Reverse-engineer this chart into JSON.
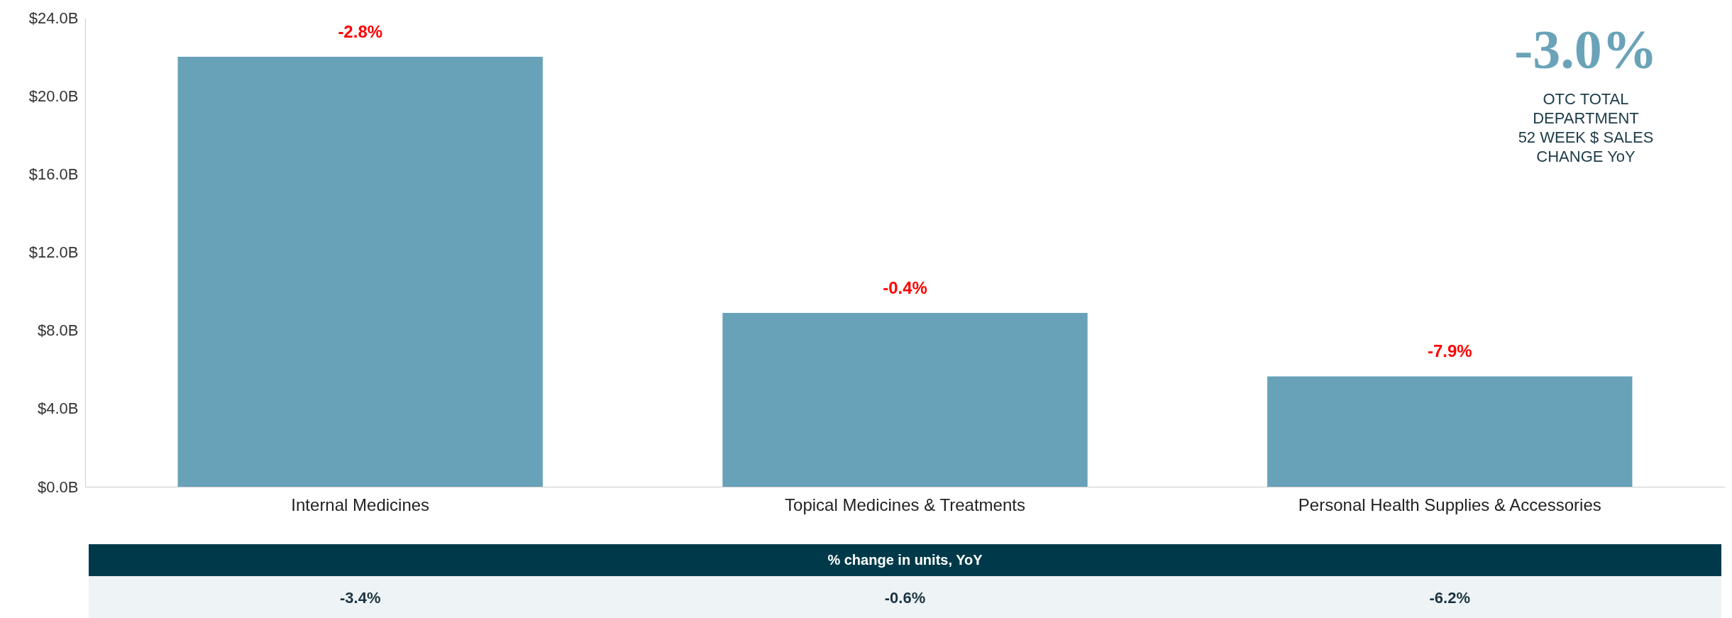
{
  "chart_data": {
    "type": "bar",
    "categories": [
      "Internal Medicines",
      "Topical Medicines & Treatments",
      "Personal Health Supplies & Accessories"
    ],
    "values": [
      22.0,
      8.9,
      5.65
    ],
    "color": "#68a2b9",
    "ylim": [
      0,
      24
    ],
    "yticks": [
      {
        "value": 0,
        "label": "$0.0B"
      },
      {
        "value": 4,
        "label": "$4.0B"
      },
      {
        "value": 8,
        "label": "$8.0B"
      },
      {
        "value": 12,
        "label": "$12.0B"
      },
      {
        "value": 16,
        "label": "$16.0B"
      },
      {
        "value": 20,
        "label": "$20.0B"
      },
      {
        "value": 24,
        "label": "$24.0B"
      }
    ],
    "annotations": [
      {
        "text": "-2.8%",
        "x": "Internal Medicines",
        "y": 22.0
      },
      {
        "text": "-0.4%",
        "x": "Topical Medicines & Treatments",
        "y": 8.9
      },
      {
        "text": "-7.9%",
        "x": "Personal Health Supplies & Accessories",
        "y": 5.65
      },
      "% change in units, YoY",
      "-3.4%",
      "-0.6%",
      "-6.2%",
      "-3.0%",
      "OTC TOTAL\nDEPARTMENT\n52 WEEK $ SALES\nCHANGE YoY"
    ]
  }
}
